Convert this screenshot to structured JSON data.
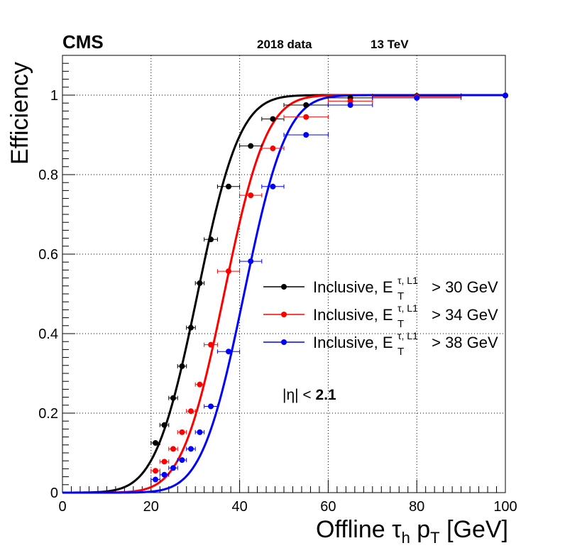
{
  "header": {
    "experiment": "CMS",
    "dataset": "2018 data",
    "energy": "13 TeV"
  },
  "annotation": {
    "prefix": "|η| < ",
    "value": "2.1"
  },
  "chart_data": {
    "type": "scatter",
    "title": "",
    "xlabel": "Offline τh pT [GeV]",
    "xlabel_parts": {
      "main": "Offline τ",
      "sub1": "h",
      "mid": " p",
      "sub2": "T",
      "unit": " [GeV]"
    },
    "ylabel": "Efficiency",
    "xlim": [
      0,
      100
    ],
    "ylim": [
      0,
      1.1
    ],
    "xticks": [
      0,
      20,
      40,
      60,
      80,
      100
    ],
    "xtick_labels": [
      "0",
      "20",
      "40",
      "60",
      "80",
      "100"
    ],
    "yticks": [
      0,
      0.2,
      0.4,
      0.6,
      0.8,
      1
    ],
    "ytick_labels": [
      "0",
      "0.2",
      "0.4",
      "0.6",
      "0.8",
      "1"
    ],
    "grid": true,
    "legend_position": "center-right",
    "series": [
      {
        "name": "Inclusive, E_T^{τ, L1} > 30 GeV",
        "legend": {
          "base": "Inclusive, E",
          "sup": "τ, L1",
          "sub": "T",
          "tail": " > 30 GeV"
        },
        "color": "#000000",
        "fit": {
          "mu": 30.5,
          "sigma": 7.5
        },
        "points": [
          {
            "x": 21,
            "y": 0.125,
            "xerr": 1.0
          },
          {
            "x": 23,
            "y": 0.17,
            "xerr": 1.0
          },
          {
            "x": 25,
            "y": 0.238,
            "xerr": 1.0
          },
          {
            "x": 27,
            "y": 0.318,
            "xerr": 1.0
          },
          {
            "x": 29,
            "y": 0.415,
            "xerr": 1.0
          },
          {
            "x": 31,
            "y": 0.527,
            "xerr": 1.0
          },
          {
            "x": 33.5,
            "y": 0.637,
            "xerr": 1.5
          },
          {
            "x": 37.5,
            "y": 0.77,
            "xerr": 2.5
          },
          {
            "x": 42.5,
            "y": 0.872,
            "xerr": 2.5
          },
          {
            "x": 47.5,
            "y": 0.94,
            "xerr": 2.5
          },
          {
            "x": 55,
            "y": 0.975,
            "xerr": 5.0
          },
          {
            "x": 65,
            "y": 0.993,
            "xerr": 5.0
          },
          {
            "x": 80,
            "y": 0.998,
            "xerr": 10.0
          },
          {
            "x": 100,
            "y": 0.999,
            "xerr": 10.0
          }
        ]
      },
      {
        "name": "Inclusive, E_T^{τ, L1} > 34 GeV",
        "legend": {
          "base": "Inclusive, E",
          "sup": "τ, L1",
          "sub": "T",
          "tail": " > 34 GeV"
        },
        "color": "#ff0000",
        "fit": {
          "mu": 36.5,
          "sigma": 7.5
        },
        "points": [
          {
            "x": 21,
            "y": 0.055,
            "xerr": 1.0
          },
          {
            "x": 23,
            "y": 0.078,
            "xerr": 1.0
          },
          {
            "x": 25,
            "y": 0.11,
            "xerr": 1.0
          },
          {
            "x": 27,
            "y": 0.152,
            "xerr": 1.0
          },
          {
            "x": 29,
            "y": 0.205,
            "xerr": 1.0
          },
          {
            "x": 31,
            "y": 0.272,
            "xerr": 1.0
          },
          {
            "x": 33.5,
            "y": 0.372,
            "xerr": 1.5
          },
          {
            "x": 37.5,
            "y": 0.557,
            "xerr": 2.5
          },
          {
            "x": 42.5,
            "y": 0.748,
            "xerr": 2.5
          },
          {
            "x": 47.5,
            "y": 0.866,
            "xerr": 2.5
          },
          {
            "x": 55,
            "y": 0.945,
            "xerr": 5.0
          },
          {
            "x": 65,
            "y": 0.985,
            "xerr": 5.0
          },
          {
            "x": 80,
            "y": 0.996,
            "xerr": 10.0
          },
          {
            "x": 100,
            "y": 0.999,
            "xerr": 10.0
          }
        ]
      },
      {
        "name": "Inclusive, E_T^{τ, L1} > 38 GeV",
        "legend": {
          "base": "Inclusive, E",
          "sup": "τ, L1",
          "sub": "T",
          "tail": " > 38 GeV"
        },
        "color": "#0000ff",
        "fit": {
          "mu": 41.0,
          "sigma": 7.5
        },
        "points": [
          {
            "x": 21,
            "y": 0.033,
            "xerr": 1.0
          },
          {
            "x": 23,
            "y": 0.045,
            "xerr": 1.0
          },
          {
            "x": 25,
            "y": 0.062,
            "xerr": 1.0
          },
          {
            "x": 27,
            "y": 0.082,
            "xerr": 1.0
          },
          {
            "x": 29,
            "y": 0.11,
            "xerr": 1.0
          },
          {
            "x": 31,
            "y": 0.152,
            "xerr": 1.0
          },
          {
            "x": 33.5,
            "y": 0.217,
            "xerr": 1.5
          },
          {
            "x": 37.5,
            "y": 0.355,
            "xerr": 2.5
          },
          {
            "x": 42.5,
            "y": 0.582,
            "xerr": 2.5
          },
          {
            "x": 47.5,
            "y": 0.77,
            "xerr": 2.5
          },
          {
            "x": 55,
            "y": 0.9,
            "xerr": 5.0
          },
          {
            "x": 65,
            "y": 0.975,
            "xerr": 5.0
          },
          {
            "x": 80,
            "y": 0.993,
            "xerr": 10.0
          },
          {
            "x": 100,
            "y": 0.999,
            "xerr": 10.0
          }
        ]
      }
    ]
  }
}
